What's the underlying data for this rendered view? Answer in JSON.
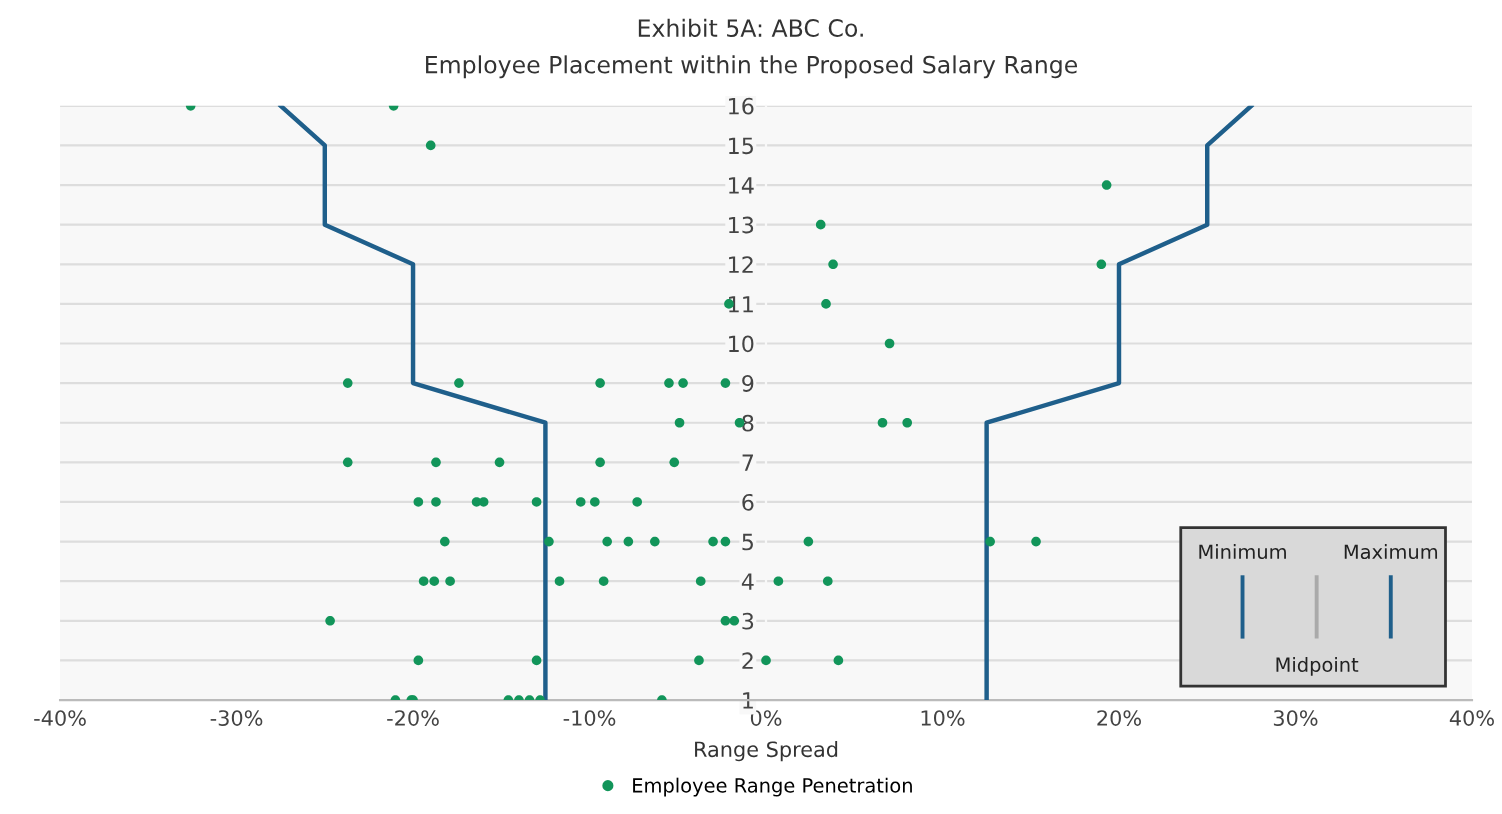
{
  "chart_data": {
    "type": "scatter",
    "title": "Exhibit 5A: ABC Co.",
    "subtitle": "Employee Placement within the Proposed Salary Range",
    "xlabel": "Range Spread",
    "series": [
      {
        "name": "Employee Range Penetration",
        "color": "#12955a",
        "marker": "circle",
        "x": [
          -32.6,
          -21.1,
          -19.0,
          3.1,
          -2.1,
          3.4,
          3.8,
          19.0,
          19.3,
          7.0,
          -23.7,
          -17.4,
          -9.4,
          -5.5,
          -4.7,
          -2.3,
          -4.9,
          -1.5,
          6.6,
          8.0,
          -23.7,
          -18.7,
          -15.1,
          -9.4,
          -5.2,
          -19.7,
          -18.7,
          -16.4,
          -16.0,
          -13.0,
          -10.5,
          -9.7,
          -7.3,
          -18.2,
          -12.3,
          -9.0,
          -7.8,
          -6.3,
          -3.0,
          -2.3,
          2.4,
          12.7,
          15.3,
          -19.4,
          -18.8,
          -17.9,
          -11.7,
          -9.2,
          -3.7,
          0.7,
          3.5,
          -24.7,
          -2.3,
          -1.8,
          -19.7,
          -13.0,
          -3.8,
          0.0,
          4.1,
          -21.0,
          -20.1,
          -20.0,
          -14.6,
          -14.0,
          -13.4,
          -12.8,
          -5.9
        ],
        "values": [
          16,
          16,
          15,
          13,
          11,
          11,
          12,
          12,
          14,
          10,
          9,
          9,
          9,
          9,
          9,
          9,
          8,
          8,
          8,
          8,
          7,
          7,
          7,
          7,
          7,
          6,
          6,
          6,
          6,
          6,
          6,
          6,
          6,
          5,
          5,
          5,
          5,
          5,
          5,
          5,
          5,
          5,
          5,
          4,
          4,
          4,
          4,
          4,
          4,
          4,
          4,
          3,
          3,
          3,
          2,
          2,
          2,
          2,
          2,
          1,
          1,
          1,
          1,
          1,
          1,
          1,
          1
        ]
      },
      {
        "type": "line",
        "color": "#1f5f8b",
        "marker": "none",
        "x": [
          -12.5,
          -12.5,
          -20,
          -20,
          -25,
          -25,
          -27.5
        ],
        "values": [
          1,
          8,
          9,
          12,
          13,
          15,
          16
        ]
      },
      {
        "type": "line",
        "color": "#1f5f8b",
        "marker": "none",
        "x": [
          12.5,
          12.5,
          20,
          20,
          25,
          25,
          27.5
        ],
        "values": [
          1,
          8,
          9,
          12,
          13,
          15,
          16
        ]
      }
    ],
    "xlim": [
      -40,
      40
    ],
    "xticks": [
      {
        "value": -40,
        "label": "-40%"
      },
      {
        "value": -30,
        "label": "-30%"
      },
      {
        "value": -20,
        "label": "-20%"
      },
      {
        "value": -10,
        "label": "-10%"
      },
      {
        "value": 0,
        "label": "0%"
      },
      {
        "value": 10,
        "label": "10%"
      },
      {
        "value": 20,
        "label": "20%"
      },
      {
        "value": 30,
        "label": "30%"
      },
      {
        "value": 40,
        "label": "40%"
      }
    ],
    "ylim": [
      1,
      16
    ],
    "yticks": [
      1,
      2,
      3,
      4,
      5,
      6,
      7,
      8,
      9,
      10,
      11,
      12,
      13,
      14,
      15,
      16
    ],
    "grid": "y",
    "legend": "bottom",
    "line_style": "solid",
    "annotations": [
      "Minimum",
      "Maximum",
      "Midpoint"
    ]
  }
}
